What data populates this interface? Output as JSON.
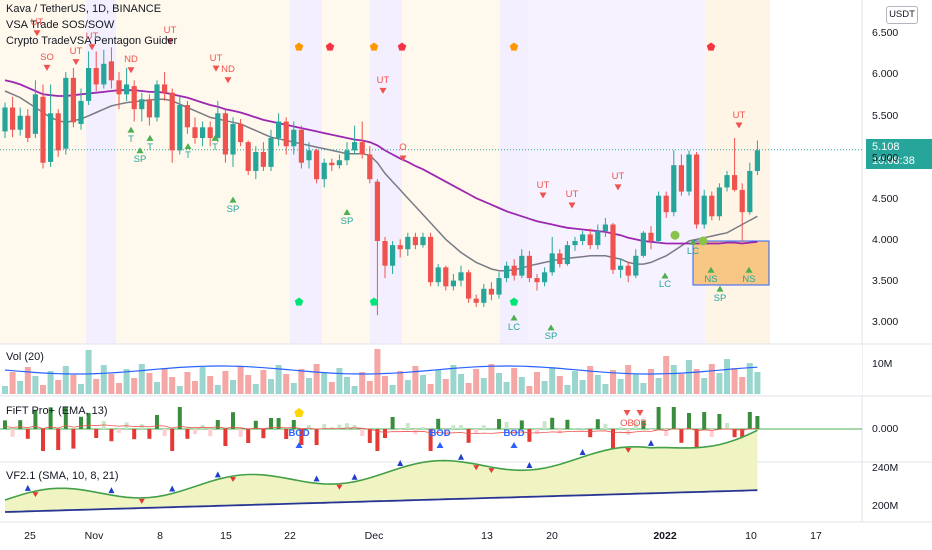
{
  "header": {
    "title": "Kava / TetherUS, 1D, BINANCE",
    "indicator_1": "VSA Trade SOS/SOW",
    "indicator_2": "Crypto TradeVSA Pentagon Guider"
  },
  "currency": "USDT",
  "last_price": {
    "value": "5.108",
    "countdown": "10:08:38"
  },
  "panes": {
    "volume": {
      "label": "Vol (20)",
      "axis": [
        "10M"
      ]
    },
    "fift": {
      "label": "FiFT Pro+ (EMA, 13)",
      "axis": [
        "0.000"
      ]
    },
    "vf": {
      "label": "VF2.1 (SMA, 10, 8, 21)",
      "axis": [
        "240M",
        "200M"
      ]
    }
  },
  "chart_data": {
    "type": "candlestick",
    "title": "Kava / TetherUS, 1D, BINANCE",
    "y_ticks": [
      "6.500",
      "6.000",
      "5.500",
      "5.000",
      "4.500",
      "4.000",
      "3.500",
      "3.000"
    ],
    "ylim": [
      2.8,
      6.75
    ],
    "x_ticks": [
      "25",
      "Nov",
      "8",
      "15",
      "22",
      "Dec",
      "13",
      "20",
      "2022",
      "10",
      "17"
    ],
    "candles": [
      [
        5.33,
        5.62,
        5.68,
        5.25
      ],
      [
        5.62,
        5.35,
        5.75,
        5.26
      ],
      [
        5.35,
        5.52,
        5.62,
        5.28
      ],
      [
        5.52,
        5.25,
        5.6,
        5.2
      ],
      [
        5.3,
        5.78,
        5.95,
        5.25
      ],
      [
        5.75,
        4.95,
        5.9,
        4.88
      ],
      [
        4.96,
        5.55,
        5.9,
        4.9
      ],
      [
        5.55,
        5.1,
        5.6,
        5.02
      ],
      [
        5.12,
        5.98,
        6.05,
        5.05
      ],
      [
        5.98,
        5.44,
        6.1,
        5.38
      ],
      [
        5.42,
        5.7,
        5.85,
        5.35
      ],
      [
        5.7,
        6.1,
        6.3,
        5.65
      ],
      [
        6.1,
        5.9,
        6.3,
        5.82
      ],
      [
        5.9,
        6.15,
        6.32,
        5.85
      ],
      [
        6.18,
        5.95,
        6.35,
        5.85
      ],
      [
        5.95,
        5.78,
        6.05,
        5.6
      ],
      [
        5.78,
        5.9,
        6.1,
        5.7
      ],
      [
        5.88,
        5.6,
        5.95,
        5.45
      ],
      [
        5.6,
        5.72,
        5.8,
        5.45
      ],
      [
        5.72,
        5.5,
        5.78,
        5.4
      ],
      [
        5.5,
        5.9,
        5.95,
        5.45
      ],
      [
        5.9,
        5.8,
        6.05,
        5.7
      ],
      [
        5.8,
        5.1,
        5.85,
        4.95
      ],
      [
        5.1,
        5.65,
        5.75,
        5.05
      ],
      [
        5.65,
        5.38,
        5.7,
        5.3
      ],
      [
        5.38,
        5.25,
        5.5,
        5.18
      ],
      [
        5.25,
        5.38,
        5.45,
        5.15
      ],
      [
        5.38,
        5.25,
        5.45,
        5.15
      ],
      [
        5.25,
        5.55,
        5.7,
        5.2
      ],
      [
        5.55,
        5.05,
        5.6,
        4.95
      ],
      [
        5.05,
        5.42,
        5.5,
        4.9
      ],
      [
        5.42,
        5.2,
        5.48,
        5.15
      ],
      [
        5.2,
        4.85,
        5.22,
        4.8
      ],
      [
        4.85,
        5.08,
        5.15,
        4.75
      ],
      [
        5.08,
        4.9,
        5.2,
        4.85
      ],
      [
        4.9,
        5.25,
        5.35,
        4.85
      ],
      [
        5.25,
        5.45,
        5.55,
        5.15
      ],
      [
        5.45,
        5.15,
        5.5,
        5.05
      ],
      [
        5.15,
        5.35,
        5.45,
        5.05
      ],
      [
        5.35,
        4.95,
        5.4,
        4.88
      ],
      [
        4.98,
        5.1,
        5.2,
        4.88
      ],
      [
        5.1,
        4.75,
        5.12,
        4.7
      ],
      [
        4.75,
        4.95,
        5.0,
        4.65
      ],
      [
        4.95,
        4.92,
        5.0,
        4.85
      ],
      [
        4.92,
        4.98,
        5.05,
        4.88
      ],
      [
        4.98,
        5.1,
        5.2,
        4.92
      ],
      [
        5.1,
        5.2,
        5.4,
        5.05
      ],
      [
        5.2,
        5.05,
        5.45,
        5.0
      ],
      [
        5.05,
        4.75,
        5.15,
        4.7
      ],
      [
        4.72,
        4.0,
        4.75,
        3.1
      ],
      [
        4.0,
        3.7,
        4.05,
        3.55
      ],
      [
        3.7,
        3.95,
        4.0,
        3.6
      ],
      [
        3.95,
        3.9,
        4.02,
        3.8
      ],
      [
        3.9,
        4.05,
        4.1,
        3.82
      ],
      [
        4.05,
        3.95,
        4.1,
        3.9
      ],
      [
        3.95,
        4.05,
        4.1,
        3.92
      ],
      [
        4.05,
        3.5,
        4.1,
        3.45
      ],
      [
        3.5,
        3.68,
        3.72,
        3.45
      ],
      [
        3.68,
        3.45,
        3.7,
        3.4
      ],
      [
        3.45,
        3.52,
        3.6,
        3.4
      ],
      [
        3.52,
        3.62,
        3.7,
        3.45
      ],
      [
        3.62,
        3.3,
        3.65,
        3.25
      ],
      [
        3.3,
        3.25,
        3.35,
        3.2
      ],
      [
        3.25,
        3.42,
        3.48,
        3.2
      ],
      [
        3.42,
        3.35,
        3.5,
        3.28
      ],
      [
        3.35,
        3.55,
        3.62,
        3.3
      ],
      [
        3.55,
        3.7,
        3.75,
        3.5
      ],
      [
        3.7,
        3.58,
        3.78,
        3.52
      ],
      [
        3.58,
        3.82,
        3.9,
        3.55
      ],
      [
        3.82,
        3.55,
        3.88,
        3.5
      ],
      [
        3.55,
        3.5,
        3.6,
        3.4
      ],
      [
        3.5,
        3.62,
        3.68,
        3.45
      ],
      [
        3.62,
        3.85,
        4.05,
        3.58
      ],
      [
        3.85,
        3.72,
        3.9,
        3.68
      ],
      [
        3.72,
        3.95,
        4.0,
        3.7
      ],
      [
        3.95,
        4.0,
        4.05,
        3.88
      ],
      [
        4.0,
        4.08,
        4.12,
        3.95
      ],
      [
        4.08,
        3.95,
        4.15,
        3.9
      ],
      [
        3.95,
        4.12,
        4.2,
        3.9
      ],
      [
        4.12,
        4.2,
        4.28,
        4.05
      ],
      [
        4.2,
        3.65,
        4.22,
        3.6
      ],
      [
        3.65,
        3.7,
        3.78,
        3.55
      ],
      [
        3.7,
        3.58,
        3.75,
        3.5
      ],
      [
        3.58,
        3.82,
        3.9,
        3.55
      ],
      [
        3.82,
        4.1,
        4.12,
        3.8
      ],
      [
        4.1,
        4.0,
        4.18,
        3.9
      ],
      [
        4.0,
        4.55,
        4.6,
        3.98
      ],
      [
        4.55,
        4.35,
        4.6,
        4.28
      ],
      [
        4.35,
        4.92,
        5.1,
        4.3
      ],
      [
        4.92,
        4.6,
        5.05,
        4.55
      ],
      [
        4.6,
        5.05,
        5.1,
        4.55
      ],
      [
        5.05,
        4.2,
        5.08,
        4.15
      ],
      [
        4.2,
        4.55,
        4.62,
        4.15
      ],
      [
        4.55,
        4.3,
        4.6,
        4.25
      ],
      [
        4.3,
        4.65,
        4.7,
        4.25
      ],
      [
        4.65,
        4.8,
        4.85,
        4.6
      ],
      [
        4.8,
        4.62,
        5.25,
        4.6
      ],
      [
        4.62,
        4.35,
        4.7,
        4.0
      ],
      [
        4.35,
        4.85,
        4.95,
        4.32
      ],
      [
        4.85,
        5.1,
        5.22,
        4.8
      ]
    ],
    "ema_purple": [
      5.95,
      5.93,
      5.9,
      5.86,
      5.82,
      5.78,
      5.77,
      5.76,
      5.76,
      5.77,
      5.78,
      5.79,
      5.8,
      5.81,
      5.82,
      5.83,
      5.83,
      5.83,
      5.82,
      5.81,
      5.81,
      5.8,
      5.78,
      5.76,
      5.74,
      5.71,
      5.68,
      5.65,
      5.63,
      5.6,
      5.58,
      5.56,
      5.53,
      5.5,
      5.47,
      5.45,
      5.43,
      5.41,
      5.39,
      5.37,
      5.35,
      5.33,
      5.31,
      5.29,
      5.27,
      5.25,
      5.23,
      5.22,
      5.2,
      5.16,
      5.1,
      5.05,
      5.0,
      4.96,
      4.91,
      4.87,
      4.82,
      4.77,
      4.72,
      4.67,
      4.62,
      4.57,
      4.52,
      4.48,
      4.44,
      4.4,
      4.36,
      4.33,
      4.3,
      4.27,
      4.24,
      4.22,
      4.2,
      4.18,
      4.16,
      4.15,
      4.14,
      4.13,
      4.12,
      4.11,
      4.09,
      4.07,
      4.04,
      4.02,
      4.0,
      3.99,
      3.98,
      3.97,
      3.97,
      3.97,
      3.97,
      3.97,
      3.97,
      3.97,
      3.97,
      3.98,
      3.98,
      3.97,
      3.98,
      3.99
    ],
    "ma_gray": [
      5.82,
      5.78,
      5.74,
      5.68,
      5.62,
      5.56,
      5.5,
      5.46,
      5.44,
      5.46,
      5.48,
      5.52,
      5.56,
      5.6,
      5.64,
      5.66,
      5.68,
      5.69,
      5.7,
      5.71,
      5.72,
      5.72,
      5.7,
      5.66,
      5.62,
      5.58,
      5.54,
      5.5,
      5.48,
      5.46,
      5.44,
      5.42,
      5.38,
      5.34,
      5.3,
      5.26,
      5.24,
      5.22,
      5.2,
      5.18,
      5.16,
      5.14,
      5.12,
      5.1,
      5.08,
      5.06,
      5.06,
      5.06,
      5.04,
      4.95,
      4.82,
      4.72,
      4.62,
      4.52,
      4.42,
      4.32,
      4.22,
      4.12,
      4.02,
      3.94,
      3.86,
      3.8,
      3.74,
      3.7,
      3.66,
      3.64,
      3.64,
      3.65,
      3.67,
      3.7,
      3.72,
      3.74,
      3.76,
      3.78,
      3.79,
      3.8,
      3.81,
      3.82,
      3.82,
      3.82,
      3.8,
      3.78,
      3.74,
      3.72,
      3.72,
      3.74,
      3.78,
      3.82,
      3.88,
      3.94,
      4.0,
      4.02,
      4.04,
      4.06,
      4.08,
      4.1,
      4.15,
      4.2,
      4.25,
      4.3
    ]
  },
  "annotations": {
    "red": [
      {
        "text": "UT",
        "x": 37,
        "price": 6.57
      },
      {
        "text": "SO",
        "x": 47,
        "price": 6.15
      },
      {
        "text": "UT",
        "x": 76,
        "price": 6.22
      },
      {
        "text": "UT",
        "x": 92,
        "price": 6.4
      },
      {
        "text": "ND",
        "x": 131,
        "price": 6.12
      },
      {
        "text": "UT",
        "x": 170,
        "price": 6.47
      },
      {
        "text": "UT",
        "x": 216,
        "price": 6.14
      },
      {
        "text": "ND",
        "x": 228,
        "price": 6.0
      },
      {
        "text": "UT",
        "x": 383,
        "price": 5.87
      },
      {
        "text": "O",
        "x": 403,
        "price": 5.05
      },
      {
        "text": "UT",
        "x": 543,
        "price": 4.6
      },
      {
        "text": "UT",
        "x": 572,
        "price": 4.48
      },
      {
        "text": "UT",
        "x": 618,
        "price": 4.7
      },
      {
        "text": "UT",
        "x": 739,
        "price": 5.45
      }
    ],
    "green": [
      {
        "text": "T",
        "x": 131,
        "price": 5.4
      },
      {
        "text": "SP",
        "x": 140,
        "price": 5.15
      },
      {
        "text": "T",
        "x": 150,
        "price": 5.3
      },
      {
        "text": "T",
        "x": 188,
        "price": 5.2
      },
      {
        "text": "T",
        "x": 215,
        "price": 5.3
      },
      {
        "text": "SP",
        "x": 233,
        "price": 4.55
      },
      {
        "text": "SP",
        "x": 347,
        "price": 4.4
      },
      {
        "text": "LC",
        "x": 514,
        "price": 3.12
      },
      {
        "text": "SP",
        "x": 551,
        "price": 3.0
      },
      {
        "text": "LC",
        "x": 665,
        "price": 3.63
      },
      {
        "text": "LC",
        "x": 693,
        "price": 4.04
      },
      {
        "text": "NS",
        "x": 711,
        "price": 3.7
      },
      {
        "text": "SP",
        "x": 720,
        "price": 3.47
      },
      {
        "text": "NS",
        "x": 749,
        "price": 3.7
      }
    ],
    "fift_blue": [
      {
        "text": "BOD",
        "x": 299
      },
      {
        "text": "BOD",
        "x": 440
      },
      {
        "text": "BOD",
        "x": 514
      }
    ],
    "fift_red": [
      {
        "text": "OB",
        "x": 627
      },
      {
        "text": "OB",
        "x": 640
      }
    ]
  },
  "colors": {
    "bull": "#26a69a",
    "bear": "#ef5350",
    "ema": "#9c27b0",
    "ma": "#787b86",
    "vol_line": "#2962ff",
    "pentagon_orange": "#ff9800",
    "pentagon_red": "#f23645",
    "pentagon_green": "#00e676",
    "box": "#f7b267"
  }
}
